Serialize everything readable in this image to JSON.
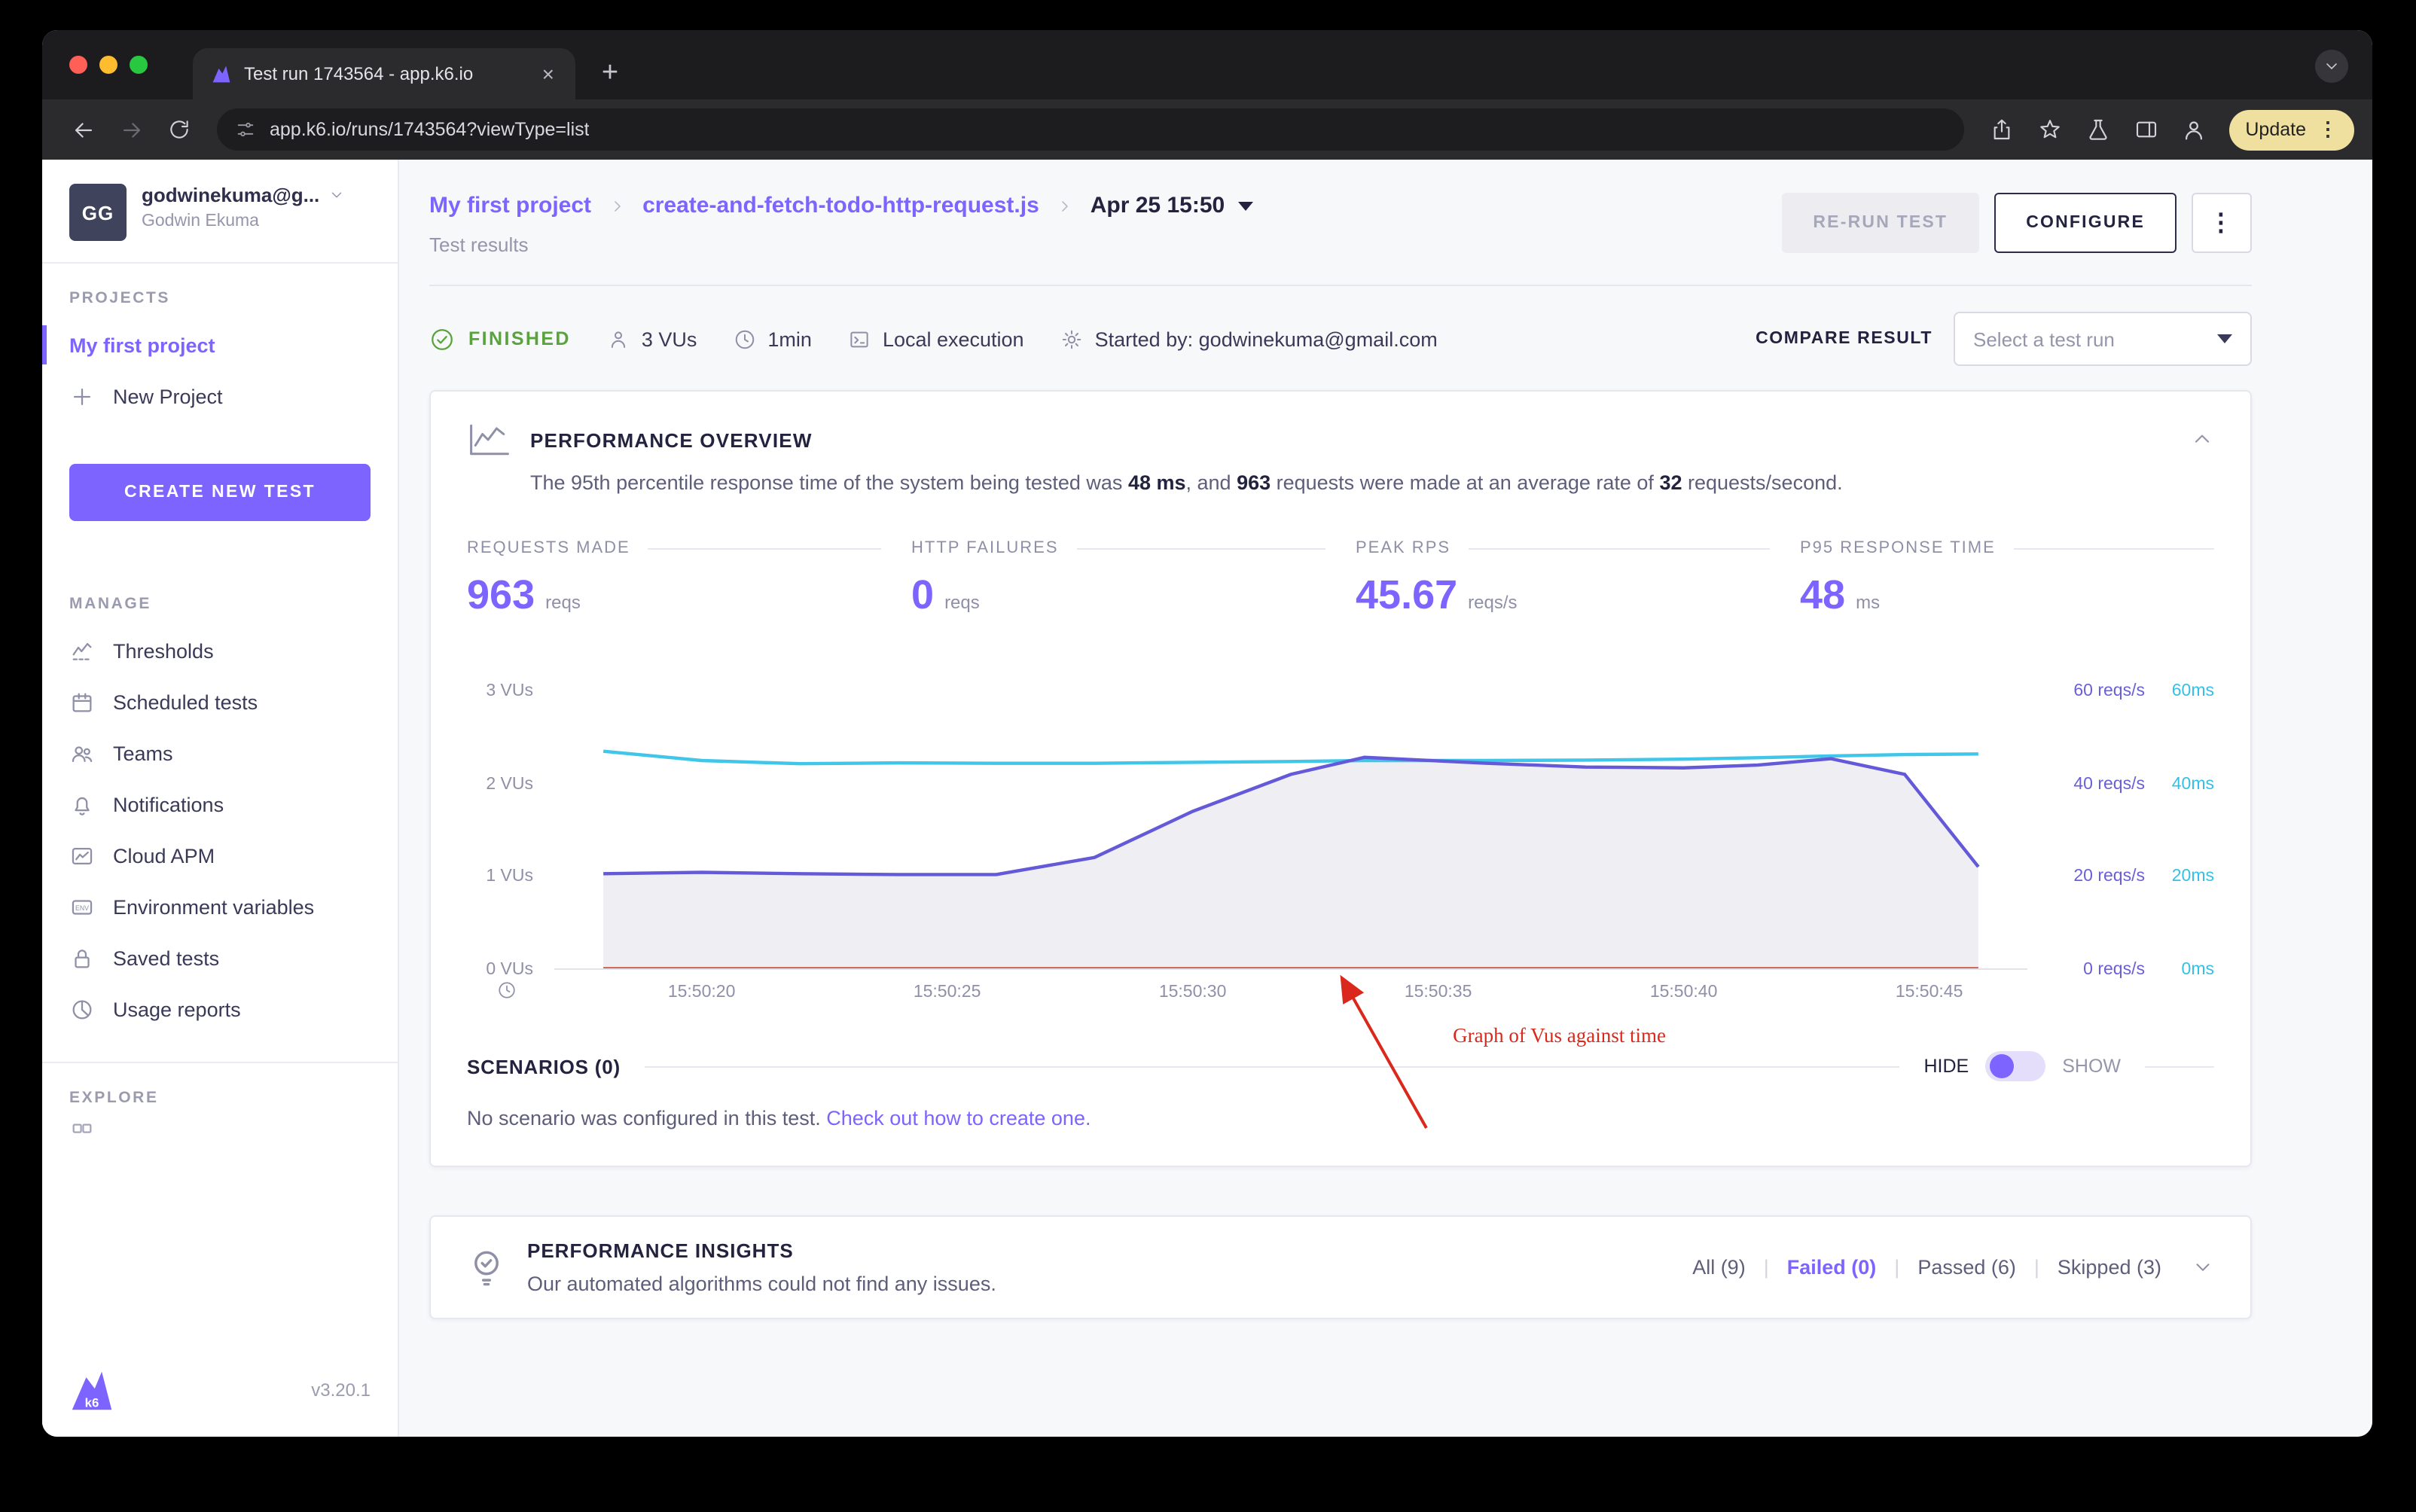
{
  "colors": {
    "accent": "#7d64ff",
    "success_green": "#59a33c",
    "rate_purple": "#6a5fd8",
    "response_cyan": "#35c0e4",
    "failure_red": "#e0402e",
    "annotation_red": "#da291c"
  },
  "browser": {
    "tab_title": "Test run 1743564 - app.k6.io",
    "url": "app.k6.io/runs/1743564?viewType=list",
    "update_button": "Update"
  },
  "sidebar": {
    "account": {
      "initials": "GG",
      "email": "godwinekuma@g...",
      "name": "Godwin Ekuma"
    },
    "projects_label": "PROJECTS",
    "project_items": [
      "My first project"
    ],
    "new_project": "New Project",
    "create_test": "CREATE NEW TEST",
    "manage_label": "MANAGE",
    "manage_items": [
      "Thresholds",
      "Scheduled tests",
      "Teams",
      "Notifications",
      "Cloud APM",
      "Environment variables",
      "Saved tests",
      "Usage reports"
    ],
    "explore_label": "EXPLORE",
    "logo_text": "k6",
    "version": "v3.20.1"
  },
  "header": {
    "breadcrumb": [
      "My first project",
      "create-and-fetch-todo-http-request.js",
      "Apr 25 15:50"
    ],
    "subtitle": "Test results",
    "rerun_button": "RE-RUN TEST",
    "configure_button": "CONFIGURE"
  },
  "status": {
    "state": "FINISHED",
    "vus": "3 VUs",
    "duration": "1min",
    "execution": "Local execution",
    "started_by": "Started by: godwinekuma@gmail.com",
    "compare_label": "COMPARE RESULT",
    "compare_placeholder": "Select a test run"
  },
  "overview": {
    "title": "PERFORMANCE OVERVIEW",
    "description": {
      "part1": "The 95th percentile response time of the system being tested was ",
      "bold1": "48 ms",
      "part2": ", and ",
      "bold2": "963",
      "part3": " requests were made at an average rate of ",
      "bold3": "32",
      "part4": " requests/second."
    },
    "metrics": [
      {
        "label": "REQUESTS MADE",
        "value": "963",
        "unit": "reqs"
      },
      {
        "label": "HTTP FAILURES",
        "value": "0",
        "unit": "reqs"
      },
      {
        "label": "PEAK RPS",
        "value": "45.67",
        "unit": "reqs/s"
      },
      {
        "label": "P95 RESPONSE TIME",
        "value": "48",
        "unit": "ms"
      }
    ]
  },
  "scenarios": {
    "title": "SCENARIOS (0)",
    "hide_label": "HIDE",
    "show_label": "SHOW",
    "empty_text": "No scenario was configured in this test. ",
    "link_text": "Check out how to create one."
  },
  "insights": {
    "title": "PERFORMANCE INSIGHTS",
    "text": "Our automated algorithms could not find any issues.",
    "filters": [
      "All (9)",
      "Failed (0)",
      "Passed (6)",
      "Skipped (3)"
    ]
  },
  "chart_data": {
    "type": "line",
    "title": "Performance overview: VUs, request rate, response time and failures against time",
    "annotation_text": "Graph of Vus against time",
    "x_range_seconds": [
      17,
      47
    ],
    "x_tick_seconds": [
      20,
      25,
      30,
      35,
      40,
      45
    ],
    "x_tick_labels": [
      "15:50:20",
      "15:50:25",
      "15:50:30",
      "15:50:35",
      "15:50:40",
      "15:50:45"
    ],
    "axes": {
      "left": {
        "label": "VUs",
        "max": 3,
        "ticks": [
          "3 VUs",
          "2 VUs",
          "1 VUs",
          "0 VUs"
        ]
      },
      "rate": {
        "label": "reqs/s",
        "max": 60,
        "ticks": [
          "60 reqs/s",
          "40 reqs/s",
          "20 reqs/s",
          "0 reqs/s"
        ]
      },
      "ms": {
        "label": "ms",
        "max": 60,
        "ticks": [
          "60ms",
          "40ms",
          "20ms",
          "0ms"
        ]
      }
    },
    "x_seconds": [
      18,
      20,
      22,
      24,
      26,
      28,
      30,
      32,
      33.5,
      36,
      38,
      40,
      41.5,
      43,
      44.5,
      46
    ],
    "series": [
      {
        "name": "VUs",
        "type": "area",
        "color": "#efeff3",
        "axis_max": 60,
        "values": [
          20.5,
          20.8,
          20.5,
          20.3,
          20.3,
          24,
          34,
          42,
          45.7,
          44.4,
          43.6,
          43.4,
          44,
          45.4,
          42,
          22
        ]
      },
      {
        "name": "HTTP failures",
        "type": "line",
        "color": "#e0402e",
        "axis_max": 60,
        "values": [
          0,
          0,
          0,
          0,
          0,
          0,
          0,
          0,
          0,
          0,
          0,
          0,
          0,
          0,
          0,
          0
        ]
      },
      {
        "name": "Response time p95 (ms)",
        "type": "line",
        "color": "#3fc6e8",
        "axis_max": 60,
        "values": [
          47,
          45,
          44.3,
          44.5,
          44.4,
          44.4,
          44.6,
          44.8,
          45,
          45,
          45.1,
          45.3,
          45.6,
          46,
          46.3,
          46.4
        ]
      },
      {
        "name": "Request rate (reqs/s)",
        "type": "line",
        "color": "#6459d8",
        "axis_max": 60,
        "values": [
          20.5,
          20.8,
          20.5,
          20.3,
          20.3,
          24,
          34,
          42,
          45.7,
          44.4,
          43.6,
          43.4,
          44,
          45.4,
          42,
          22
        ]
      }
    ]
  }
}
